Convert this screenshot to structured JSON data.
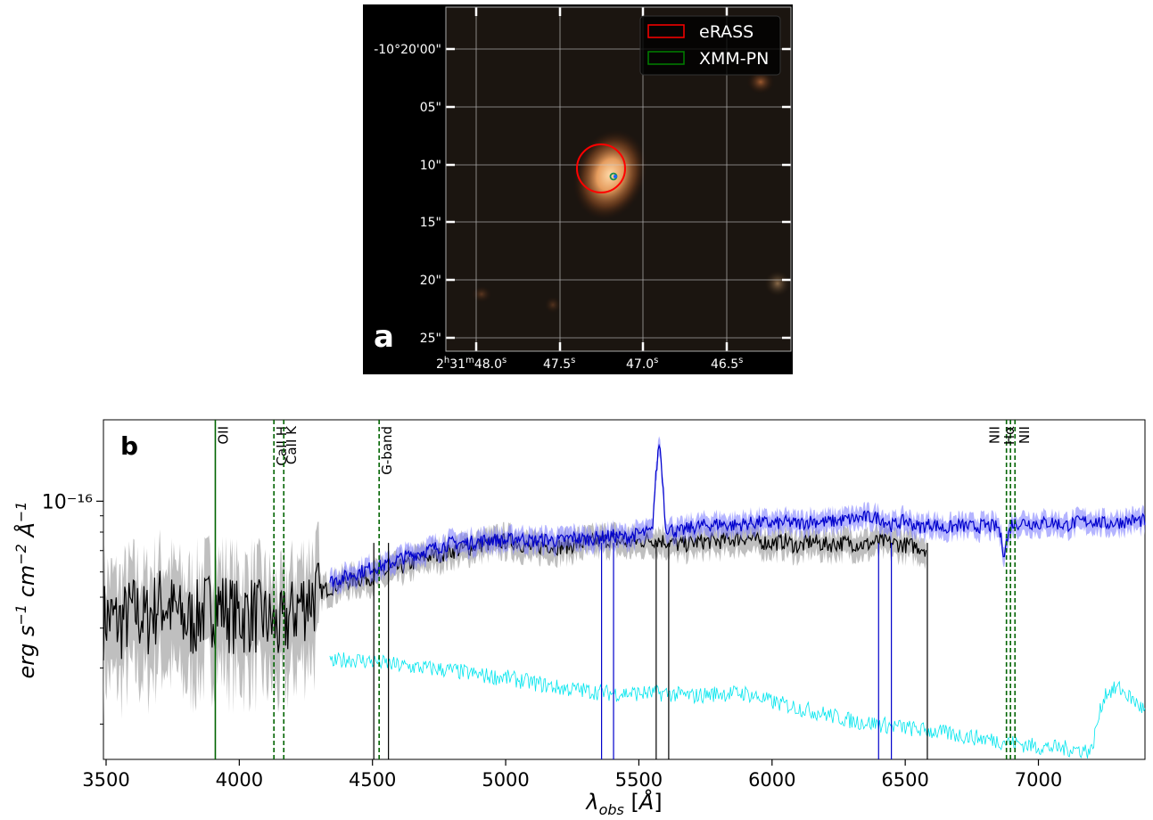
{
  "panel_a": {
    "label": "a",
    "background_color": "#000000",
    "legend": [
      {
        "label": "eRASS",
        "color": "#ff0000"
      },
      {
        "label": "XMM-PN",
        "color": "#008000"
      }
    ],
    "dec_ticks": [
      "-10°20'00\"",
      "05\"",
      "10\"",
      "15\"",
      "20\"",
      "25\""
    ],
    "ra_ticks": [
      {
        "h": "2",
        "m": "31",
        "s": "48.0"
      },
      {
        "h": "",
        "m": "",
        "s": "47.5"
      },
      {
        "h": "",
        "m": "",
        "s": "47.0"
      },
      {
        "h": "",
        "m": "",
        "s": "46.5"
      }
    ]
  },
  "chart_data": {
    "type": "line",
    "panel_label": "b",
    "xlabel": "λobs [Å]",
    "ylabel": "erg s⁻¹ cm⁻² Å⁻¹",
    "xlim": [
      3490,
      7400
    ],
    "ylim": [
      1.55e-17,
      1.8e-16
    ],
    "yscale": "log",
    "xticks": [
      3500,
      4000,
      4500,
      5000,
      5500,
      6000,
      6500,
      7000
    ],
    "ytick_labels": [
      {
        "value": 1e-16,
        "label": "10⁻¹⁶"
      }
    ],
    "colors": {
      "spectrum_1": "#000000",
      "spectrum_2": "#0000cc",
      "spectrum_3": "#00e5ee",
      "lines": "#006400"
    },
    "series": [
      {
        "color": "#000000",
        "band_color": "#aaaaaa",
        "x": [
          3490,
          3550,
          3600,
          3650,
          3700,
          3750,
          3800,
          3850,
          3900,
          3950,
          4000,
          4050,
          4100,
          4150,
          4200,
          4250,
          4300,
          4350,
          4400,
          4450,
          4500,
          4550,
          4600,
          4650,
          4700,
          4750,
          4800,
          4850,
          4900,
          4950,
          5000,
          5050,
          5100,
          5150,
          5200,
          5250,
          5300,
          5350,
          5400,
          5450,
          5500,
          5550,
          5600,
          5650,
          5700,
          5750,
          5800,
          5850,
          5900,
          5950,
          6000,
          6050,
          6100,
          6150,
          6200,
          6250,
          6300,
          6350,
          6400,
          6450,
          6500,
          6550,
          6580
        ],
        "y": [
          4.4e-17,
          4.2e-17,
          4.6e-17,
          4.3e-17,
          4.9e-17,
          4.6e-17,
          4.2e-17,
          4.5e-17,
          4.8e-17,
          4.7e-17,
          4.4e-17,
          4.6e-17,
          4.3e-17,
          4e-17,
          4.5e-17,
          5e-17,
          5.2e-17,
          5.4e-17,
          5.6e-17,
          5.7e-17,
          5.8e-17,
          6e-17,
          6.2e-17,
          6.4e-17,
          6.7e-17,
          6.8e-17,
          7e-17,
          7.1e-17,
          7.3e-17,
          7.4e-17,
          7.5e-17,
          7.4e-17,
          7.1e-17,
          7.3e-17,
          7.2e-17,
          7.3e-17,
          7.4e-17,
          7.5e-17,
          7.6e-17,
          7.4e-17,
          7.5e-17,
          7.6e-17,
          7.5e-17,
          7.3e-17,
          7.4e-17,
          7.5e-17,
          7.5e-17,
          7.6e-17,
          7.7e-17,
          7.5e-17,
          7.4e-17,
          7.5e-17,
          7.2e-17,
          7.5e-17,
          7.3e-17,
          7.4e-17,
          7.4e-17,
          7.3e-17,
          7.5e-17,
          7.4e-17,
          7.3e-17,
          7.2e-17,
          7.1e-17
        ]
      },
      {
        "color": "#0000cc",
        "band_color": "#7777ff",
        "x": [
          4340,
          4400,
          4450,
          4500,
          4550,
          4600,
          4650,
          4700,
          4750,
          4800,
          4850,
          4900,
          4950,
          5000,
          5050,
          5100,
          5150,
          5200,
          5250,
          5300,
          5350,
          5400,
          5450,
          5500,
          5550,
          5577,
          5600,
          5650,
          5700,
          5750,
          5800,
          5850,
          5900,
          5950,
          6000,
          6050,
          6100,
          6150,
          6200,
          6250,
          6300,
          6350,
          6400,
          6450,
          6500,
          6550,
          6600,
          6650,
          6700,
          6750,
          6800,
          6850,
          6870,
          6900,
          6950,
          7000,
          7050,
          7100,
          7150,
          7200,
          7250,
          7300,
          7350,
          7400
        ],
        "y": [
          5.6e-17,
          5.8e-17,
          6e-17,
          6.2e-17,
          6.3e-17,
          6.6e-17,
          6.8e-17,
          7e-17,
          7.2e-17,
          7.4e-17,
          7.4e-17,
          7.5e-17,
          7.6e-17,
          7.5e-17,
          7.7e-17,
          7.5e-17,
          7.6e-17,
          7.5e-17,
          7.7e-17,
          7.6e-17,
          7.7e-17,
          7.8e-17,
          7.7e-17,
          7.9e-17,
          8e-17,
          1.55e-16,
          8.3e-17,
          8e-17,
          8.3e-17,
          8.4e-17,
          8.5e-17,
          8.4e-17,
          8.5e-17,
          8.6e-17,
          8.5e-17,
          8.6e-17,
          8.5e-17,
          8.7e-17,
          8.6e-17,
          8.7e-17,
          8.8e-17,
          8.9e-17,
          8.9e-17,
          8.4e-17,
          8.7e-17,
          8.3e-17,
          8.5e-17,
          8.2e-17,
          8.4e-17,
          8.3e-17,
          8.4e-17,
          8.3e-17,
          6.9e-17,
          8.5e-17,
          8.6e-17,
          8.5e-17,
          8.6e-17,
          8.4e-17,
          8.6e-17,
          8.7e-17,
          8.5e-17,
          8.6e-17,
          8.7e-17,
          8.7e-17
        ]
      },
      {
        "color": "#00e5ee",
        "x": [
          4340,
          4400,
          4500,
          4600,
          4700,
          4800,
          4900,
          5000,
          5100,
          5200,
          5300,
          5400,
          5500,
          5600,
          5700,
          5800,
          5900,
          6000,
          6100,
          6200,
          6300,
          6400,
          6500,
          6600,
          6700,
          6800,
          6900,
          7000,
          7100,
          7200,
          7250,
          7300,
          7350,
          7400
        ],
        "y": [
          3.1e-17,
          3.2e-17,
          3.15e-17,
          3.05e-17,
          3e-17,
          2.95e-17,
          2.85e-17,
          2.8e-17,
          2.7e-17,
          2.6e-17,
          2.55e-17,
          2.5e-17,
          2.5e-17,
          2.5e-17,
          2.45e-17,
          2.5e-17,
          2.5e-17,
          2.35e-17,
          2.25e-17,
          2.15e-17,
          2.05e-17,
          2e-17,
          1.95e-17,
          1.9e-17,
          1.85e-17,
          1.8e-17,
          1.75e-17,
          1.7e-17,
          1.68e-17,
          1.65e-17,
          2.5e-17,
          2.6e-17,
          2.4e-17,
          2.2e-17
        ]
      }
    ],
    "line_markers": [
      {
        "label": "OII",
        "x": 3910,
        "style": "solid"
      },
      {
        "label": "CaII H",
        "x": 4130,
        "style": "dashed"
      },
      {
        "label": "CaII K",
        "x": 4167,
        "style": "dashed"
      },
      {
        "label": "G-band",
        "x": 4525,
        "style": "dashed"
      },
      {
        "label": "NII",
        "x": 6880,
        "style": "dashed"
      },
      {
        "label": "Hα",
        "x": 6895,
        "style": "dashed"
      },
      {
        "label": "NII",
        "x": 6912,
        "style": "dashed"
      }
    ]
  }
}
